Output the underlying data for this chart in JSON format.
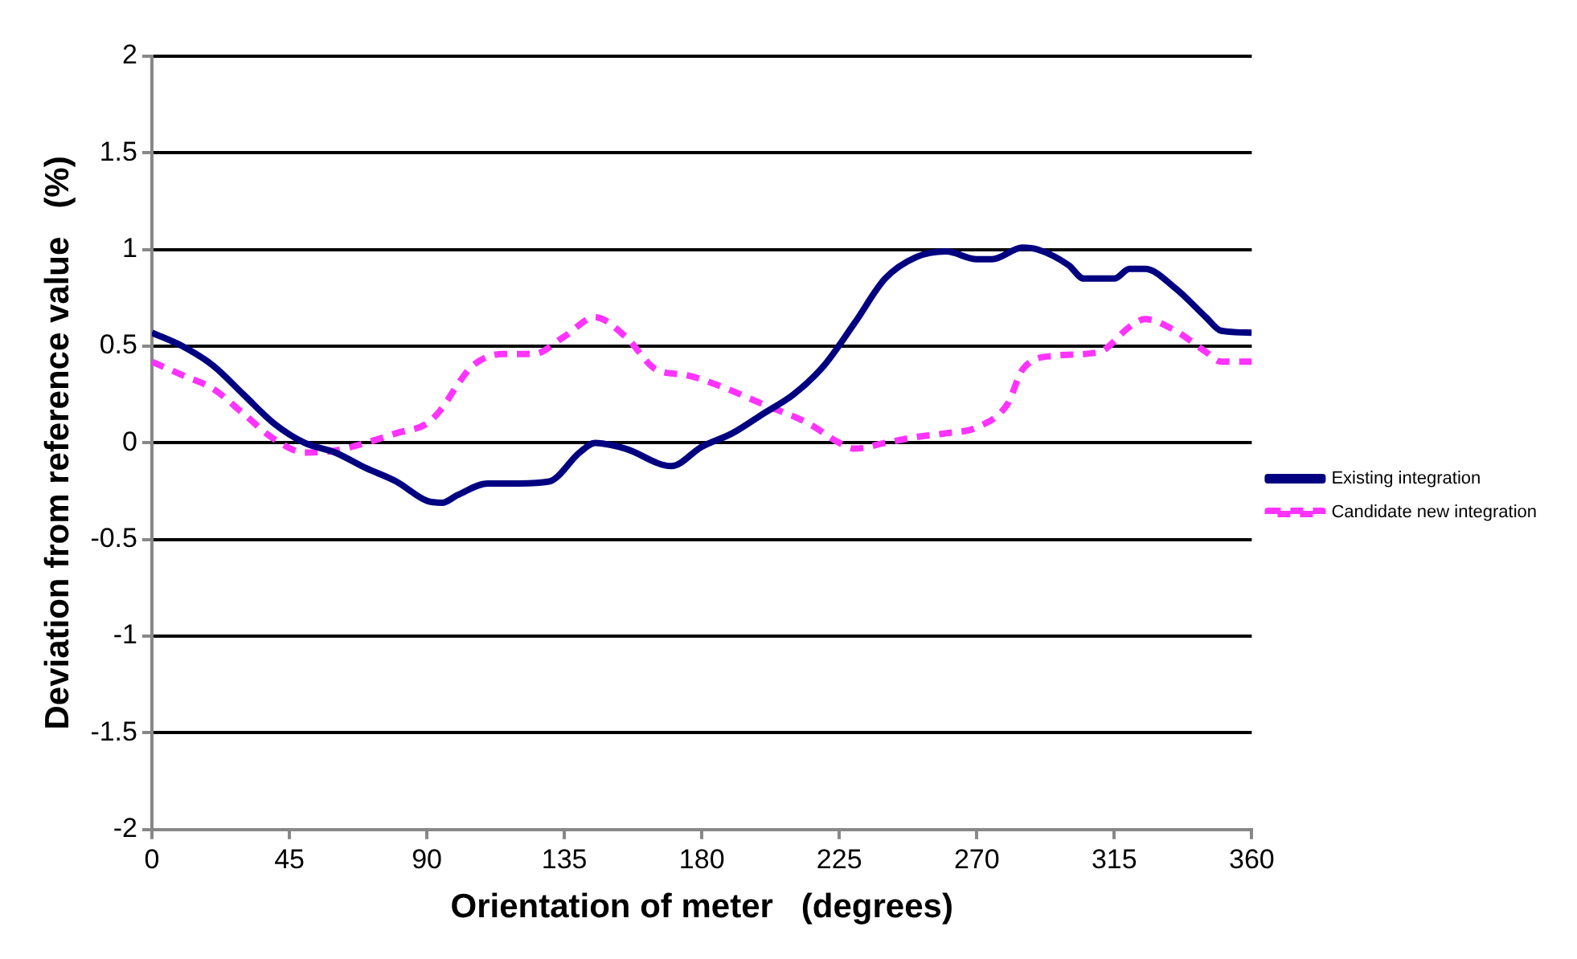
{
  "chart_data": {
    "type": "line",
    "xlabel": "Orientation of meter   (degrees)",
    "ylabel": "Deviation from reference value   (%)",
    "xlim": [
      0,
      360
    ],
    "xticks": [
      0,
      45,
      90,
      135,
      180,
      225,
      270,
      315,
      360
    ],
    "ylim": [
      -2,
      2
    ],
    "yticks": [
      -2,
      -1.5,
      -1,
      -0.5,
      0,
      0.5,
      1,
      1.5,
      2
    ],
    "grid": "y",
    "legend": "right",
    "marker": "none",
    "series": [
      {
        "name": "Existing integration",
        "color": "#000080",
        "line_style": "solid",
        "x": [
          0,
          10,
          20,
          30,
          40,
          50,
          60,
          70,
          80,
          90,
          95,
          100,
          110,
          120,
          130,
          140,
          145,
          155,
          170,
          180,
          190,
          200,
          210,
          220,
          230,
          240,
          250,
          260,
          270,
          275,
          285,
          290,
          300,
          305,
          315,
          320,
          325,
          335,
          345,
          350,
          360
        ],
        "values": [
          0.57,
          0.5,
          0.4,
          0.25,
          0.1,
          0,
          -0.05,
          -0.13,
          -0.2,
          -0.3,
          -0.31,
          -0.27,
          -0.21,
          -0.21,
          -0.2,
          -0.05,
          0,
          -0.03,
          -0.12,
          -0.02,
          0.05,
          0.15,
          0.25,
          0.4,
          0.62,
          0.85,
          0.96,
          0.99,
          0.95,
          0.95,
          1.01,
          1,
          0.92,
          0.85,
          0.85,
          0.9,
          0.9,
          0.8,
          0.65,
          0.58,
          0.57
        ]
      },
      {
        "name": "Candidate new integration",
        "color": "#ff33ff",
        "line_style": "dashed",
        "x": [
          0,
          10,
          20,
          30,
          40,
          50,
          60,
          70,
          80,
          90,
          95,
          100,
          105,
          115,
          125,
          135,
          145,
          155,
          165,
          175,
          185,
          200,
          215,
          225,
          230,
          240,
          250,
          260,
          270,
          280,
          285,
          295,
          310,
          320,
          325,
          335,
          345,
          350,
          360
        ],
        "values": [
          0.42,
          0.35,
          0.28,
          0.15,
          0.02,
          -0.05,
          -0.04,
          0,
          0.05,
          0.1,
          0.18,
          0.3,
          0.4,
          0.46,
          0.46,
          0.55,
          0.65,
          0.55,
          0.38,
          0.35,
          0.3,
          0.2,
          0.1,
          0,
          -0.03,
          0,
          0.03,
          0.05,
          0.08,
          0.2,
          0.38,
          0.45,
          0.47,
          0.6,
          0.64,
          0.58,
          0.47,
          0.42,
          0.42
        ]
      }
    ]
  }
}
